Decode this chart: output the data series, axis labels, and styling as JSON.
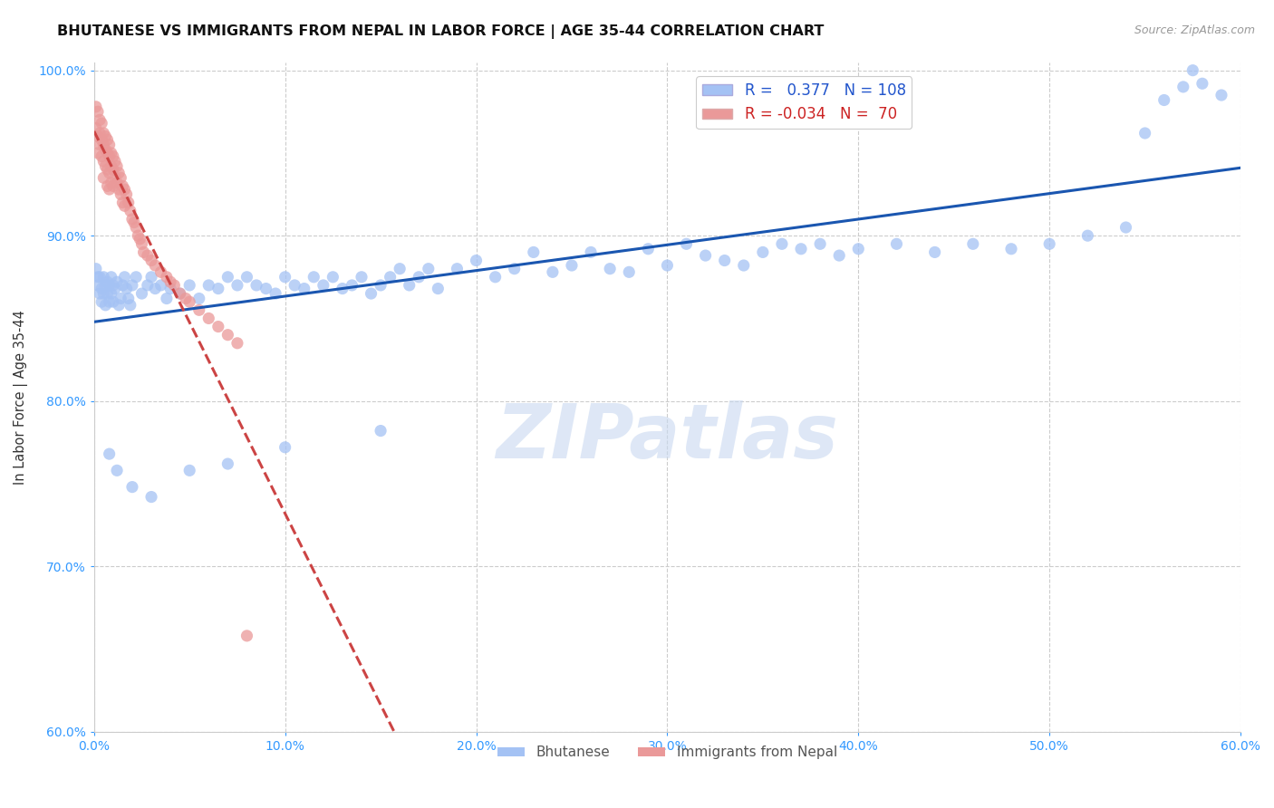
{
  "title": "BHUTANESE VS IMMIGRANTS FROM NEPAL IN LABOR FORCE | AGE 35-44 CORRELATION CHART",
  "source": "Source: ZipAtlas.com",
  "ylabel": "In Labor Force | Age 35-44",
  "xlim": [
    0.0,
    0.6
  ],
  "ylim": [
    0.6,
    1.005
  ],
  "xticks": [
    0.0,
    0.1,
    0.2,
    0.3,
    0.4,
    0.5,
    0.6
  ],
  "xticklabels": [
    "0.0%",
    "10.0%",
    "20.0%",
    "30.0%",
    "40.0%",
    "50.0%",
    "60.0%"
  ],
  "yticks": [
    0.6,
    0.7,
    0.8,
    0.9,
    1.0
  ],
  "yticklabels": [
    "60.0%",
    "70.0%",
    "80.0%",
    "90.0%",
    "100.0%"
  ],
  "blue_R": 0.377,
  "blue_N": 108,
  "pink_R": -0.034,
  "pink_N": 70,
  "blue_color": "#a4c2f4",
  "pink_color": "#ea9999",
  "blue_line_color": "#1a56b0",
  "pink_line_color": "#cc4444",
  "watermark": "ZIPatlas",
  "watermark_color": "#c8d8f0",
  "background_color": "#ffffff",
  "grid_color": "#cccccc",
  "blue_x": [
    0.001,
    0.002,
    0.002,
    0.003,
    0.003,
    0.004,
    0.004,
    0.005,
    0.005,
    0.006,
    0.006,
    0.007,
    0.007,
    0.008,
    0.008,
    0.009,
    0.009,
    0.01,
    0.01,
    0.011,
    0.012,
    0.013,
    0.014,
    0.015,
    0.016,
    0.017,
    0.018,
    0.019,
    0.02,
    0.022,
    0.025,
    0.028,
    0.03,
    0.032,
    0.035,
    0.038,
    0.04,
    0.045,
    0.05,
    0.055,
    0.06,
    0.065,
    0.07,
    0.075,
    0.08,
    0.085,
    0.09,
    0.095,
    0.1,
    0.105,
    0.11,
    0.115,
    0.12,
    0.125,
    0.13,
    0.135,
    0.14,
    0.145,
    0.15,
    0.155,
    0.16,
    0.165,
    0.17,
    0.175,
    0.18,
    0.19,
    0.2,
    0.21,
    0.22,
    0.23,
    0.24,
    0.25,
    0.26,
    0.27,
    0.28,
    0.29,
    0.3,
    0.31,
    0.32,
    0.33,
    0.34,
    0.35,
    0.36,
    0.37,
    0.38,
    0.39,
    0.4,
    0.42,
    0.44,
    0.46,
    0.48,
    0.5,
    0.52,
    0.54,
    0.55,
    0.56,
    0.57,
    0.575,
    0.58,
    0.59,
    0.008,
    0.012,
    0.02,
    0.03,
    0.05,
    0.07,
    0.1,
    0.15
  ],
  "blue_y": [
    0.88,
    0.875,
    0.87,
    0.865,
    0.875,
    0.868,
    0.86,
    0.865,
    0.875,
    0.87,
    0.858,
    0.872,
    0.865,
    0.87,
    0.86,
    0.875,
    0.865,
    0.87,
    0.86,
    0.868,
    0.872,
    0.858,
    0.862,
    0.87,
    0.875,
    0.868,
    0.862,
    0.858,
    0.87,
    0.875,
    0.865,
    0.87,
    0.875,
    0.868,
    0.87,
    0.862,
    0.868,
    0.865,
    0.87,
    0.862,
    0.87,
    0.868,
    0.875,
    0.87,
    0.875,
    0.87,
    0.868,
    0.865,
    0.875,
    0.87,
    0.868,
    0.875,
    0.87,
    0.875,
    0.868,
    0.87,
    0.875,
    0.865,
    0.87,
    0.875,
    0.88,
    0.87,
    0.875,
    0.88,
    0.868,
    0.88,
    0.885,
    0.875,
    0.88,
    0.89,
    0.878,
    0.882,
    0.89,
    0.88,
    0.878,
    0.892,
    0.882,
    0.895,
    0.888,
    0.885,
    0.882,
    0.89,
    0.895,
    0.892,
    0.895,
    0.888,
    0.892,
    0.895,
    0.89,
    0.895,
    0.892,
    0.895,
    0.9,
    0.905,
    0.962,
    0.982,
    0.99,
    1.0,
    0.992,
    0.985,
    0.768,
    0.758,
    0.748,
    0.742,
    0.758,
    0.762,
    0.772,
    0.782
  ],
  "pink_x": [
    0.001,
    0.001,
    0.002,
    0.002,
    0.002,
    0.003,
    0.003,
    0.003,
    0.004,
    0.004,
    0.004,
    0.005,
    0.005,
    0.005,
    0.005,
    0.006,
    0.006,
    0.006,
    0.007,
    0.007,
    0.007,
    0.007,
    0.008,
    0.008,
    0.008,
    0.008,
    0.009,
    0.009,
    0.009,
    0.01,
    0.01,
    0.01,
    0.011,
    0.011,
    0.012,
    0.012,
    0.013,
    0.013,
    0.014,
    0.014,
    0.015,
    0.015,
    0.016,
    0.016,
    0.017,
    0.018,
    0.019,
    0.02,
    0.021,
    0.022,
    0.023,
    0.024,
    0.025,
    0.026,
    0.028,
    0.03,
    0.032,
    0.035,
    0.038,
    0.04,
    0.042,
    0.045,
    0.048,
    0.05,
    0.055,
    0.06,
    0.065,
    0.07,
    0.075,
    0.08
  ],
  "pink_y": [
    0.978,
    0.965,
    0.975,
    0.96,
    0.95,
    0.97,
    0.962,
    0.955,
    0.968,
    0.958,
    0.948,
    0.962,
    0.955,
    0.945,
    0.935,
    0.96,
    0.952,
    0.942,
    0.958,
    0.95,
    0.94,
    0.93,
    0.955,
    0.948,
    0.938,
    0.928,
    0.95,
    0.942,
    0.932,
    0.948,
    0.94,
    0.93,
    0.945,
    0.935,
    0.942,
    0.932,
    0.938,
    0.928,
    0.935,
    0.925,
    0.93,
    0.92,
    0.928,
    0.918,
    0.925,
    0.92,
    0.915,
    0.91,
    0.908,
    0.905,
    0.9,
    0.898,
    0.895,
    0.89,
    0.888,
    0.885,
    0.882,
    0.878,
    0.875,
    0.872,
    0.87,
    0.865,
    0.862,
    0.86,
    0.855,
    0.85,
    0.845,
    0.84,
    0.835,
    0.658
  ]
}
